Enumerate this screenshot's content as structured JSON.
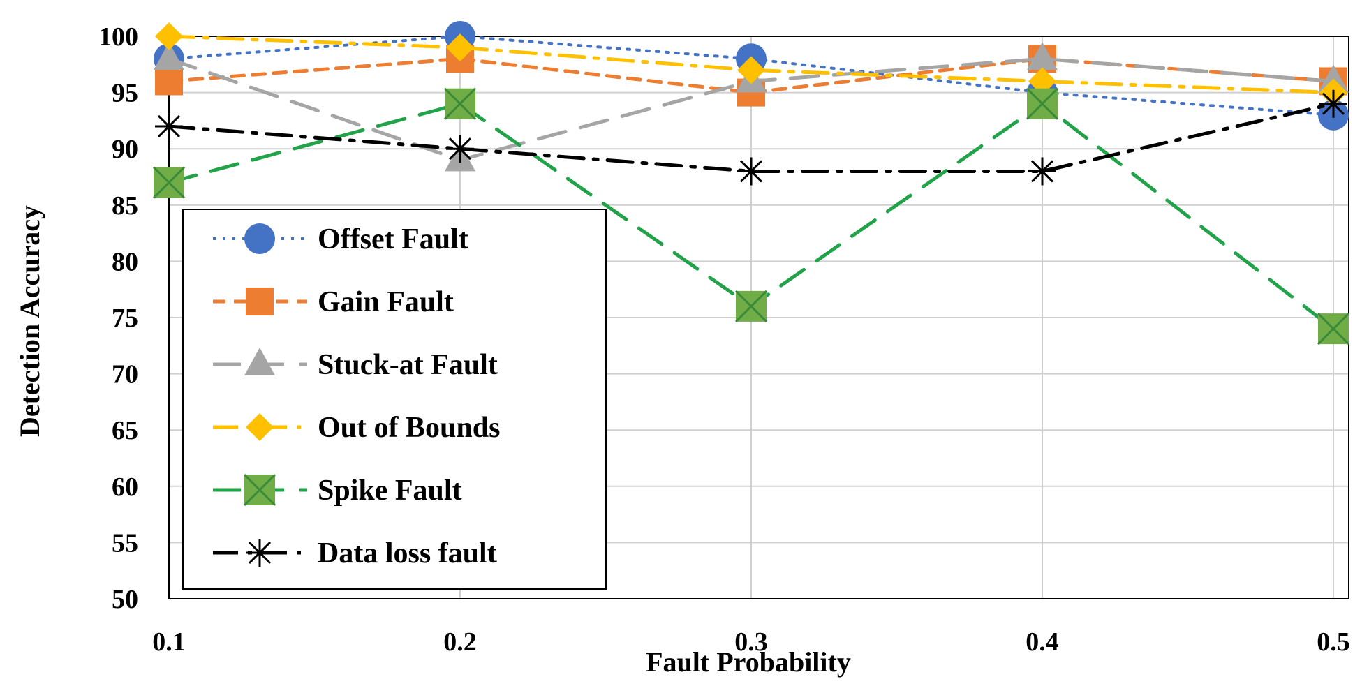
{
  "chart_data": {
    "type": "line",
    "xlabel": "Fault Probability",
    "ylabel": "Detection Accuracy",
    "x": [
      0.1,
      0.2,
      0.3,
      0.4,
      0.5
    ],
    "x_tick_labels": [
      "0.1",
      "0.2",
      "0.3",
      "0.4",
      "0.5"
    ],
    "ylim": [
      50,
      100
    ],
    "y_ticks": [
      50,
      55,
      60,
      65,
      70,
      75,
      80,
      85,
      90,
      95,
      100
    ],
    "grid": "on",
    "legend_placement": "left",
    "series": [
      {
        "name": "Offset Fault",
        "values": [
          98,
          100,
          98,
          95,
          93
        ],
        "color": "#4472C4",
        "line_style": "dotted",
        "marker": "circle"
      },
      {
        "name": "Gain Fault",
        "values": [
          96,
          98,
          95,
          98,
          96
        ],
        "color": "#ED7D31",
        "line_style": "dashed",
        "marker": "square"
      },
      {
        "name": "Stuck-at Fault",
        "values": [
          98,
          89,
          96,
          98,
          96
        ],
        "color": "#A5A5A5",
        "line_style": "long-dash",
        "marker": "triangle"
      },
      {
        "name": "Out of Bounds",
        "values": [
          100,
          99,
          97,
          96,
          95
        ],
        "color": "#FFC000",
        "line_style": "dash-dot",
        "marker": "diamond"
      },
      {
        "name": "Spike Fault",
        "values": [
          87,
          94,
          76,
          94,
          74
        ],
        "color": "#22A34A",
        "marker_color": "#70AD47",
        "line_style": "long-dash",
        "marker": "x-square"
      },
      {
        "name": "Data loss fault",
        "values": [
          92,
          90,
          88,
          88,
          94
        ],
        "color": "#000000",
        "line_style": "dash-dot",
        "marker": "star"
      }
    ]
  }
}
